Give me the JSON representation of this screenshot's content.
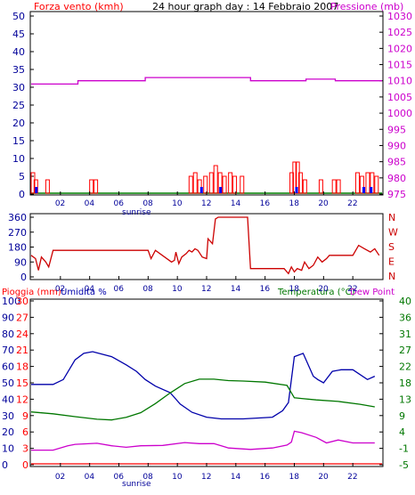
{
  "colors": {
    "wind": "#ff0000",
    "gust_block": "#ff0000",
    "wind_avg_block": "#0000ff",
    "wind_base": "#008000",
    "pressure": "#cc00cc",
    "direction": "#cc0000",
    "humidity": "#0000aa",
    "temperature": "#007700",
    "dewpoint": "#cc00cc",
    "rain": "#ff0000",
    "axis_text_left": "#000099",
    "axis_text_right": "#cc00cc",
    "wind_dir_text": "#cc0000",
    "hum_label": "#0000aa",
    "rain_label": "#ff0000",
    "temp_label": "#007700"
  },
  "header": {
    "left": "Forza vento (kmh)",
    "center": "24 hour graph day : 14 Febbraio 2007",
    "right": "Pressione (mb)"
  },
  "lower_header": {
    "rain": "Pioggia (mm)",
    "hum": "Umidita %",
    "temp": "Temperatura (°C)",
    "dew": "Dew Point"
  },
  "sunrise_label": "sunrise",
  "compass": [
    "N",
    "W",
    "S",
    "E",
    "N"
  ],
  "chart_data": [
    {
      "type": "bar",
      "name": "wind-pressure",
      "x_ticks": [
        "02",
        "04",
        "06",
        "08",
        "10",
        "12",
        "14",
        "16",
        "18",
        "20",
        "22"
      ],
      "wind_ticks": [
        "0",
        "5",
        "10",
        "15",
        "20",
        "25",
        "30",
        "35",
        "40",
        "45",
        "50"
      ],
      "wind_ylim": [
        0,
        50
      ],
      "pressure_ticks": [
        "975",
        "980",
        "985",
        "990",
        "995",
        "1000",
        "1005",
        "1010",
        "1015",
        "1020",
        "1025",
        "1030"
      ],
      "pressure_ylim": [
        975,
        1030
      ],
      "pressure": {
        "x": [
          0,
          3.2,
          3.2,
          7.8,
          7.8,
          15.0,
          15.0,
          18.8,
          18.8,
          20.8,
          20.8,
          24
        ],
        "y": [
          1009,
          1009,
          1010,
          1010,
          1011,
          1011,
          1010,
          1010,
          1010.5,
          1010.5,
          1010,
          1010
        ]
      },
      "wind_gust": [
        {
          "h": 0.0,
          "v": 6
        },
        {
          "h": 0.2,
          "v": 4
        },
        {
          "h": 1.0,
          "v": 4
        },
        {
          "h": 4.0,
          "v": 4
        },
        {
          "h": 4.3,
          "v": 4
        },
        {
          "h": 10.8,
          "v": 5
        },
        {
          "h": 11.1,
          "v": 6
        },
        {
          "h": 11.4,
          "v": 4
        },
        {
          "h": 11.8,
          "v": 5
        },
        {
          "h": 12.2,
          "v": 6
        },
        {
          "h": 12.5,
          "v": 8
        },
        {
          "h": 12.8,
          "v": 6
        },
        {
          "h": 13.1,
          "v": 5
        },
        {
          "h": 13.5,
          "v": 6
        },
        {
          "h": 13.8,
          "v": 5
        },
        {
          "h": 14.3,
          "v": 5
        },
        {
          "h": 17.7,
          "v": 6
        },
        {
          "h": 17.9,
          "v": 9
        },
        {
          "h": 18.1,
          "v": 9
        },
        {
          "h": 18.3,
          "v": 6
        },
        {
          "h": 18.6,
          "v": 4
        },
        {
          "h": 19.7,
          "v": 4
        },
        {
          "h": 20.6,
          "v": 4
        },
        {
          "h": 20.9,
          "v": 4
        },
        {
          "h": 22.2,
          "v": 6
        },
        {
          "h": 22.5,
          "v": 5
        },
        {
          "h": 22.9,
          "v": 6
        },
        {
          "h": 23.2,
          "v": 6
        },
        {
          "h": 23.5,
          "v": 5
        }
      ],
      "wind_avg": [
        {
          "h": 0.2,
          "v": 2
        },
        {
          "h": 11.5,
          "v": 2
        },
        {
          "h": 12.8,
          "v": 2
        },
        {
          "h": 18.0,
          "v": 2
        },
        {
          "h": 22.6,
          "v": 2
        },
        {
          "h": 23.1,
          "v": 2
        }
      ]
    },
    {
      "type": "line",
      "name": "wind-direction",
      "x_ticks": [
        "02",
        "04",
        "06",
        "08",
        "10",
        "12",
        "14",
        "16",
        "18",
        "20",
        "22"
      ],
      "y_ticks": [
        "360",
        "270",
        "180",
        "90",
        "0"
      ],
      "ylim": [
        0,
        360
      ],
      "x": [
        0,
        0.3,
        0.5,
        0.7,
        1.0,
        1.2,
        1.5,
        8.0,
        8.2,
        8.5,
        9.6,
        9.8,
        9.9,
        10.1,
        10.3,
        10.6,
        10.8,
        11.0,
        11.2,
        11.4,
        11.7,
        12.0,
        12.1,
        12.4,
        12.6,
        12.8,
        14.8,
        15.0,
        17.3,
        17.6,
        17.8,
        18.0,
        18.2,
        18.5,
        18.7,
        19.0,
        19.3,
        19.6,
        19.9,
        20.2,
        20.4,
        22.0,
        22.4,
        22.8,
        23.2,
        23.5,
        23.8
      ],
      "y": [
        130,
        110,
        40,
        120,
        90,
        60,
        160,
        160,
        110,
        160,
        90,
        100,
        150,
        80,
        120,
        140,
        160,
        150,
        170,
        160,
        120,
        110,
        230,
        200,
        350,
        360,
        360,
        50,
        50,
        20,
        60,
        30,
        50,
        40,
        90,
        50,
        70,
        120,
        90,
        110,
        130,
        130,
        190,
        170,
        150,
        170,
        130
      ]
    },
    {
      "type": "line",
      "name": "temp-humidity",
      "x_ticks": [
        "02",
        "04",
        "06",
        "08",
        "10",
        "12",
        "14",
        "16",
        "18",
        "20",
        "22"
      ],
      "hum_ticks": [
        "0",
        "10",
        "20",
        "30",
        "40",
        "50",
        "60",
        "70",
        "80",
        "90",
        "100"
      ],
      "rain_ticks": [
        "0",
        "3",
        "6",
        "9",
        "12",
        "15",
        "18",
        "21",
        "24",
        "27",
        "30"
      ],
      "temp_ticks": [
        "-5",
        "-1",
        "4",
        "9",
        "13",
        "18",
        "22",
        "27",
        "31",
        "36",
        "40"
      ],
      "temp_ylim": [
        -5,
        40
      ],
      "hum_ylim": [
        0,
        100
      ],
      "series": [
        {
          "name": "Umidita %",
          "axis": "hum",
          "x": [
            0,
            1.5,
            2.2,
            3.0,
            3.6,
            4.2,
            5.5,
            6.5,
            7.2,
            7.8,
            8.5,
            9.5,
            10.2,
            11.0,
            12.0,
            13.0,
            14.5,
            16.5,
            17.2,
            17.6,
            18.0,
            18.6,
            19.3,
            19.6,
            20.0,
            20.6,
            21.2,
            22.0,
            23.0,
            23.5
          ],
          "y": [
            49,
            49,
            52,
            64,
            68,
            69,
            66,
            61,
            57,
            52,
            48,
            44,
            37,
            32,
            29,
            28,
            28,
            29,
            33,
            38,
            66,
            68,
            54,
            52,
            50,
            57,
            58,
            58,
            52,
            54
          ]
        },
        {
          "name": "Temperatura (°C)",
          "axis": "temp",
          "x": [
            0,
            1.5,
            3.0,
            4.5,
            5.5,
            6.5,
            7.5,
            8.5,
            9.5,
            10.5,
            11.5,
            12.5,
            13.5,
            14.5,
            16.0,
            17.5,
            18.0,
            18.5,
            19.5,
            21.0,
            22.5,
            23.5
          ],
          "y": [
            9.5,
            9.0,
            8.2,
            7.5,
            7.3,
            8.0,
            9.3,
            11.8,
            14.7,
            17.3,
            18.5,
            18.5,
            18.1,
            18.0,
            17.7,
            16.8,
            13.4,
            13.2,
            12.8,
            12.4,
            11.6,
            10.9
          ]
        },
        {
          "name": "Dew Point",
          "axis": "temp",
          "x": [
            0,
            1.5,
            2.5,
            3.0,
            4.5,
            5.5,
            6.5,
            7.5,
            9.0,
            10.5,
            11.5,
            12.5,
            13.5,
            15.0,
            16.5,
            17.5,
            17.8,
            18.0,
            18.5,
            19.5,
            20.2,
            21.0,
            22.0,
            23.5
          ],
          "y": [
            -1.0,
            -1.0,
            0.2,
            0.6,
            0.9,
            0.2,
            -0.2,
            0.2,
            0.3,
            1.1,
            0.8,
            0.8,
            -0.4,
            -0.8,
            -0.4,
            0.4,
            1.2,
            4.2,
            3.8,
            2.5,
            1.0,
            1.8,
            1.0,
            1.0
          ]
        }
      ],
      "rain": {
        "x": [
          0,
          24
        ],
        "y": [
          0,
          0
        ]
      }
    }
  ]
}
